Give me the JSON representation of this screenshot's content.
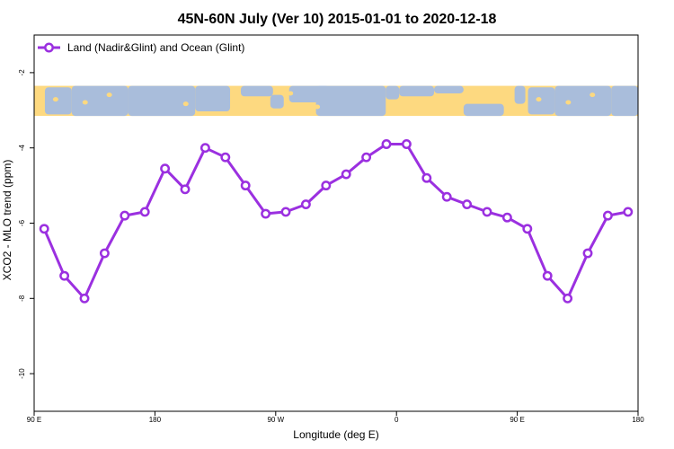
{
  "chart_data": {
    "type": "line",
    "title": "45N-60N July (Ver 10)   2015-01-01 to 2020-12-18",
    "xlabel": "Longitude (deg E)",
    "ylabel": "XCO2 - MLO trend (ppm)",
    "x_ticks": [
      {
        "value": 90,
        "label": "90 E"
      },
      {
        "value": 180,
        "label": "180"
      },
      {
        "value": 270,
        "label": "90 W"
      },
      {
        "value": 360,
        "label": "0"
      },
      {
        "value": 450,
        "label": "90 E"
      },
      {
        "value": 540,
        "label": "180"
      }
    ],
    "xlim": [
      90,
      540
    ],
    "ylim": [
      -11,
      -1
    ],
    "y_ticks": [
      -2,
      -4,
      -6,
      -8,
      -10
    ],
    "grid": false,
    "legend_position": "top-left",
    "colors": {
      "series": "#9b30e0",
      "ocean": "#a9bddb",
      "land": "#fdd980"
    },
    "map_strip": {
      "y_top": -2.35,
      "y_bottom": -3.15
    },
    "series": [
      {
        "name": "Land (Nadir&Glint) and Ocean (Glint)",
        "x": [
          97.5,
          112.5,
          127.5,
          142.5,
          157.5,
          172.5,
          187.5,
          202.5,
          217.5,
          232.5,
          247.5,
          262.5,
          277.5,
          292.5,
          307.5,
          322.5,
          337.5,
          352.5,
          367.5,
          382.5,
          397.5,
          412.5,
          427.5,
          442.5,
          457.5,
          472.5,
          487.5,
          502.5,
          517.5,
          532.5
        ],
        "values": [
          -6.15,
          -7.4,
          -8.0,
          -6.8,
          -5.8,
          -5.7,
          -4.55,
          -5.1,
          -4.0,
          -4.25,
          -5.0,
          -5.75,
          -5.7,
          -5.5,
          -5.0,
          -4.7,
          -4.25,
          -3.9,
          -3.9,
          -4.8,
          -5.3,
          -5.5,
          -5.7,
          -5.85,
          -6.15,
          -7.4,
          -8.0,
          -6.8,
          -5.8,
          -5.7
        ]
      }
    ]
  }
}
